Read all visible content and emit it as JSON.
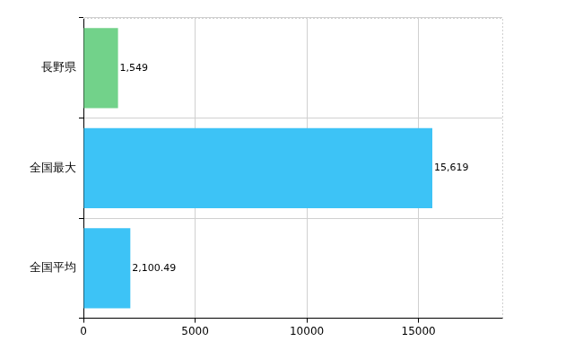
{
  "chart_data": {
    "type": "bar",
    "orientation": "horizontal",
    "categories": [
      "長野県",
      "全国最大",
      "全国平均"
    ],
    "values": [
      1549,
      15619,
      2100.49
    ],
    "value_labels": [
      "1,549",
      "15,619",
      "2,100.49"
    ],
    "colors": [
      "#72d28a",
      "#3dc3f6",
      "#3dc3f6"
    ],
    "xlim": [
      0,
      18750
    ],
    "xticks": [
      0,
      5000,
      10000,
      15000
    ],
    "grid": true,
    "data_labels": true
  }
}
